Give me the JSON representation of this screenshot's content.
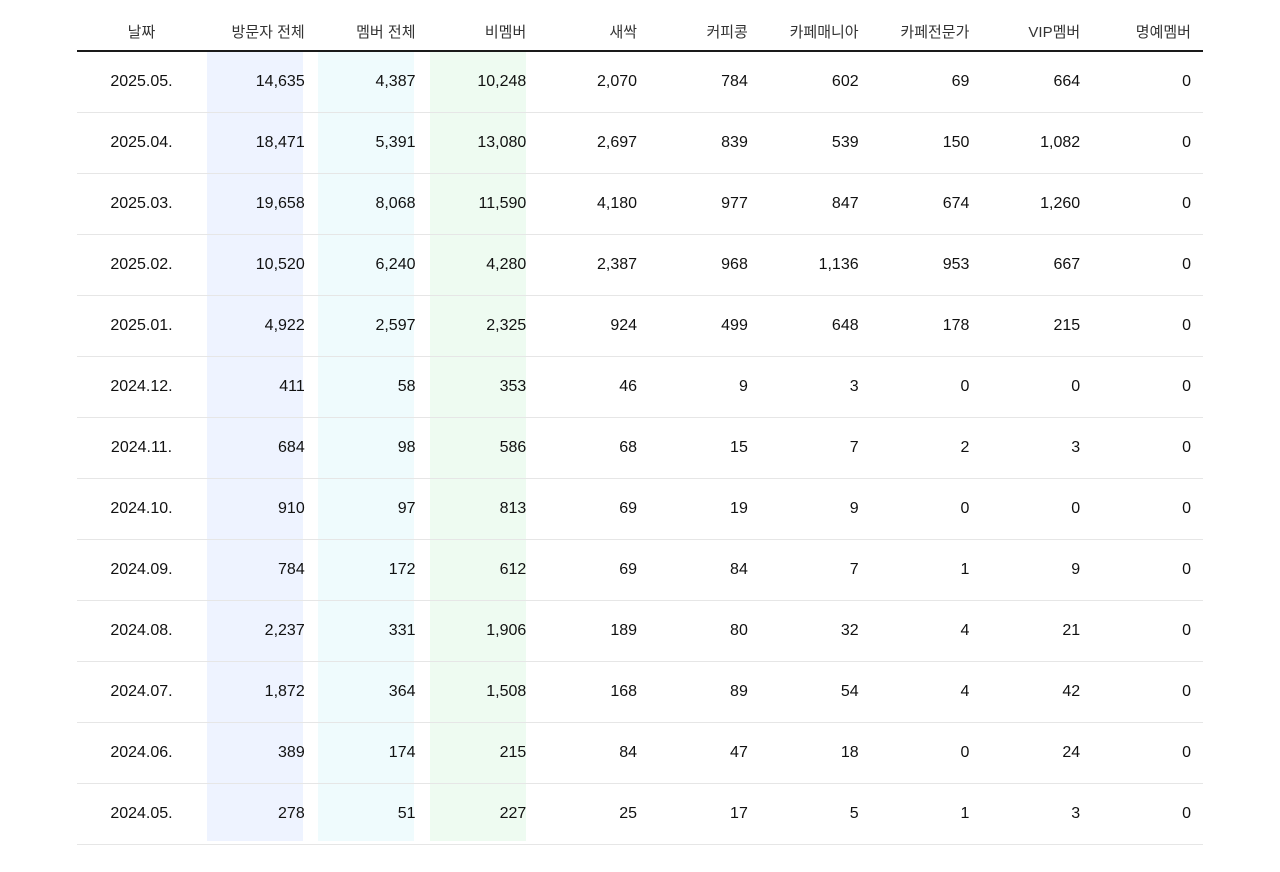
{
  "table": {
    "headers": [
      "날짜",
      "방문자 전체",
      "멤버 전체",
      "비멤버",
      "새싹",
      "커피콩",
      "카페매니아",
      "카페전문가",
      "VIP멤버",
      "명예멤버"
    ],
    "rows": [
      [
        "2025.05.",
        "14,635",
        "4,387",
        "10,248",
        "2,070",
        "784",
        "602",
        "69",
        "664",
        "0"
      ],
      [
        "2025.04.",
        "18,471",
        "5,391",
        "13,080",
        "2,697",
        "839",
        "539",
        "150",
        "1,082",
        "0"
      ],
      [
        "2025.03.",
        "19,658",
        "8,068",
        "11,590",
        "4,180",
        "977",
        "847",
        "674",
        "1,260",
        "0"
      ],
      [
        "2025.02.",
        "10,520",
        "6,240",
        "4,280",
        "2,387",
        "968",
        "1,136",
        "953",
        "667",
        "0"
      ],
      [
        "2025.01.",
        "4,922",
        "2,597",
        "2,325",
        "924",
        "499",
        "648",
        "178",
        "215",
        "0"
      ],
      [
        "2024.12.",
        "411",
        "58",
        "353",
        "46",
        "9",
        "3",
        "0",
        "0",
        "0"
      ],
      [
        "2024.11.",
        "684",
        "98",
        "586",
        "68",
        "15",
        "7",
        "2",
        "3",
        "0"
      ],
      [
        "2024.10.",
        "910",
        "97",
        "813",
        "69",
        "19",
        "9",
        "0",
        "0",
        "0"
      ],
      [
        "2024.09.",
        "784",
        "172",
        "612",
        "69",
        "84",
        "7",
        "1",
        "9",
        "0"
      ],
      [
        "2024.08.",
        "2,237",
        "331",
        "1,906",
        "189",
        "80",
        "32",
        "4",
        "21",
        "0"
      ],
      [
        "2024.07.",
        "1,872",
        "364",
        "1,508",
        "168",
        "89",
        "54",
        "4",
        "42",
        "0"
      ],
      [
        "2024.06.",
        "389",
        "174",
        "215",
        "84",
        "47",
        "18",
        "0",
        "24",
        "0"
      ],
      [
        "2024.05.",
        "278",
        "51",
        "227",
        "25",
        "17",
        "5",
        "1",
        "3",
        "0"
      ]
    ]
  },
  "colors": {
    "visitors_column": "#eef3ff",
    "members_column": "#effbfd",
    "nonmembers_column": "#eefbf1",
    "header_rule": "#1a1a1a",
    "row_divider": "#e6e6e6"
  }
}
